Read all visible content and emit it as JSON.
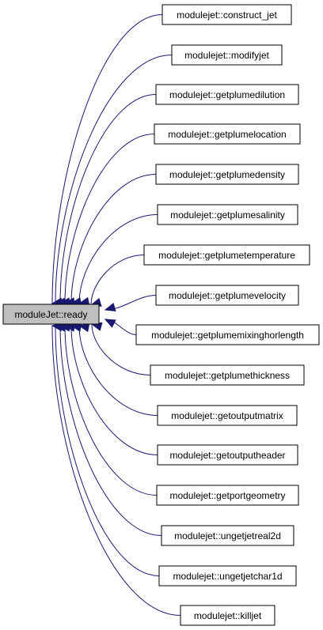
{
  "graph": {
    "root": {
      "label": "moduleJet::ready",
      "fill": "#bfbfbf"
    },
    "callers": [
      {
        "label": "modulejet::construct_jet"
      },
      {
        "label": "modulejet::modifyjet"
      },
      {
        "label": "modulejet::getplumedilution"
      },
      {
        "label": "modulejet::getplumelocation"
      },
      {
        "label": "modulejet::getplumedensity"
      },
      {
        "label": "modulejet::getplumesalinity"
      },
      {
        "label": "modulejet::getplumetemperature"
      },
      {
        "label": "modulejet::getplumevelocity"
      },
      {
        "label": "modulejet::getplumemixinghorlength"
      },
      {
        "label": "modulejet::getplumethickness"
      },
      {
        "label": "modulejet::getoutputmatrix"
      },
      {
        "label": "modulejet::getoutputheader"
      },
      {
        "label": "modulejet::getportgeometry"
      },
      {
        "label": "modulejet::ungetjetreal2d"
      },
      {
        "label": "modulejet::ungetjetchar1d"
      },
      {
        "label": "modulejet::killjet"
      }
    ],
    "colors": {
      "edge": "#191970",
      "node_border": "#000000",
      "node_fill": "#ffffff"
    }
  }
}
